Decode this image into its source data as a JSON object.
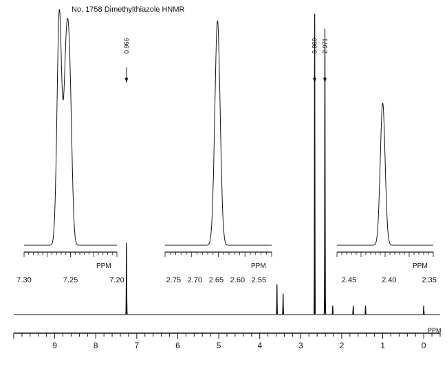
{
  "title": "No. 1758 Dimethylthiazole HNMR",
  "chart_data": [
    {
      "type": "line",
      "panel": "main",
      "xlabel": "PPM",
      "xlim": [
        10,
        -0.4
      ],
      "x_ticks": [
        9,
        8,
        7,
        6,
        5,
        4,
        3,
        2,
        1,
        0
      ],
      "peaks": [
        {
          "x": 7.25,
          "y": 0.24
        },
        {
          "x": 3.58,
          "y": 0.1
        },
        {
          "x": 3.43,
          "y": 0.07
        },
        {
          "x": 2.66,
          "y": 1.0
        },
        {
          "x": 2.41,
          "y": 0.95
        },
        {
          "x": 2.22,
          "y": 0.03
        },
        {
          "x": 1.72,
          "y": 0.03
        },
        {
          "x": 1.42,
          "y": 0.03
        },
        {
          "x": 0.0,
          "y": 0.03
        }
      ],
      "integrals": [
        {
          "label": "0.966",
          "x": 7.25
        },
        {
          "label": "3.000",
          "x": 2.66
        },
        {
          "label": "2.971",
          "x": 2.41
        }
      ]
    },
    {
      "type": "line",
      "panel": "inset-1",
      "xlabel": "PPM",
      "xlim": [
        7.3,
        7.2
      ],
      "x_ticks": [
        "7.30",
        "7.25",
        "7.20"
      ],
      "peaks": [
        {
          "x": 7.262,
          "y": 1.0
        },
        {
          "x": 7.255,
          "y": 0.68
        },
        {
          "x": 7.251,
          "y": 0.66
        }
      ]
    },
    {
      "type": "line",
      "panel": "inset-2",
      "xlabel": "PPM",
      "xlim": [
        2.77,
        2.52
      ],
      "x_ticks": [
        "2.75",
        "2.70",
        "2.65",
        "2.60",
        "2.55"
      ],
      "peaks": [
        {
          "x": 2.647,
          "y": 1.0
        }
      ]
    },
    {
      "type": "line",
      "panel": "inset-3",
      "xlabel": "PPM",
      "xlim": [
        2.465,
        2.345
      ],
      "x_ticks": [
        "2.45",
        "2.40",
        "2.35"
      ],
      "peaks": [
        {
          "x": 2.408,
          "y": 1.0
        }
      ]
    }
  ]
}
